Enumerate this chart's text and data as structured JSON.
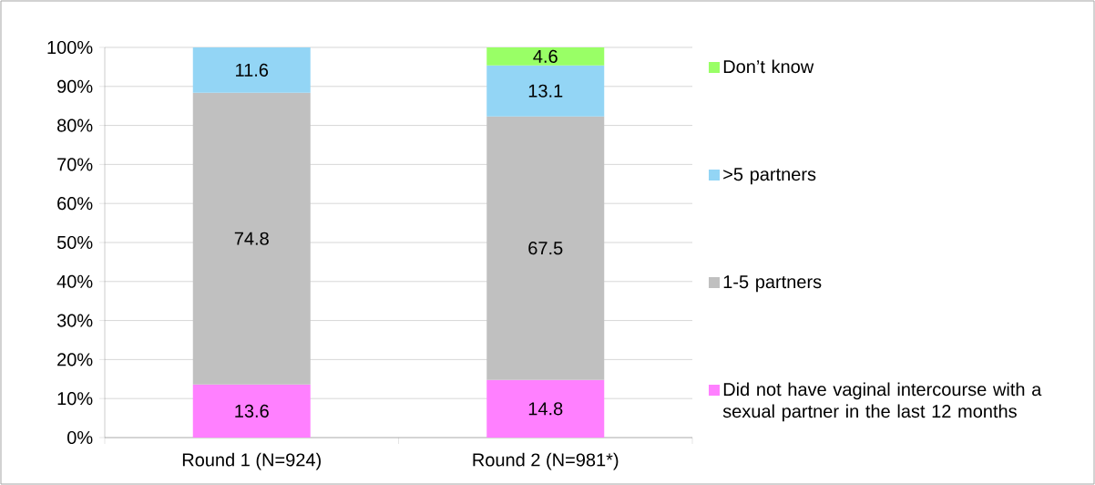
{
  "chart_data": {
    "type": "bar",
    "stacked": true,
    "categories": [
      "Round 1 (N=924)",
      "Round 2 (N=981*)"
    ],
    "series": [
      {
        "name": "Did not have vaginal intercourse with a sexual partner in the last 12 months",
        "color": "#ff80ff",
        "values": [
          13.6,
          14.8
        ]
      },
      {
        "name": "1-5 partners",
        "color": "#c0c0c0",
        "values": [
          74.8,
          67.5
        ]
      },
      {
        "name": ">5 partners",
        "color": "#93d5f5",
        "values": [
          11.6,
          13.1
        ]
      },
      {
        "name": "Don’t know",
        "color": "#99ff66",
        "values": [
          null,
          4.6
        ]
      }
    ],
    "ylim": [
      0,
      100
    ],
    "yticks": [
      {
        "value": 0,
        "label": "0%"
      },
      {
        "value": 10,
        "label": "10%"
      },
      {
        "value": 20,
        "label": "20%"
      },
      {
        "value": 30,
        "label": "30%"
      },
      {
        "value": 40,
        "label": "40%"
      },
      {
        "value": 50,
        "label": "50%"
      },
      {
        "value": 60,
        "label": "60%"
      },
      {
        "value": 70,
        "label": "70%"
      },
      {
        "value": 80,
        "label": "80%"
      },
      {
        "value": 90,
        "label": "90%"
      },
      {
        "value": 100,
        "label": "100%"
      }
    ],
    "grid": "y",
    "legend": "right",
    "data_labels": true
  }
}
